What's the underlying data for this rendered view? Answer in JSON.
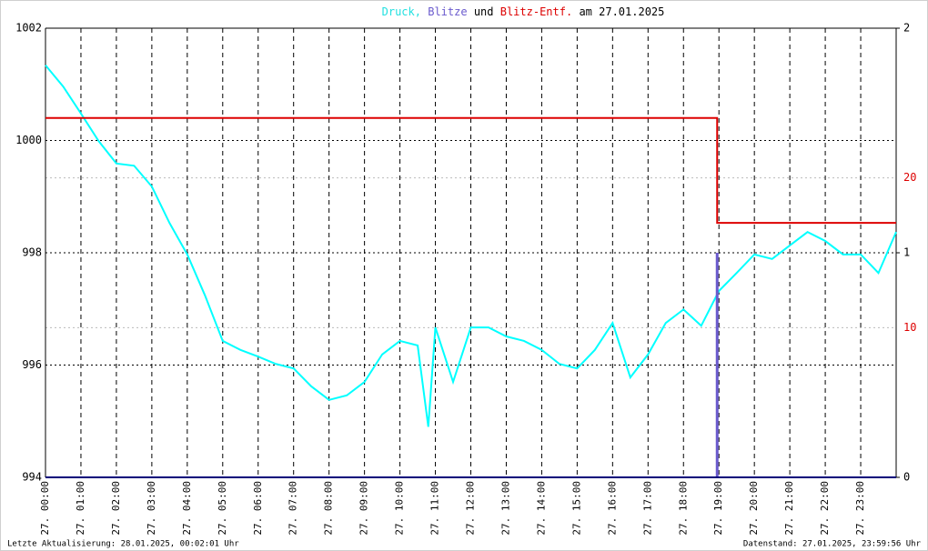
{
  "chart_data": {
    "type": "line",
    "title": [
      "Druck,",
      "Blitze",
      "und",
      "Blitz-Entf.",
      "am 27.01.2025"
    ],
    "title_colors": [
      "#22e0e0",
      "#6a5acd",
      "#000000",
      "#dd0000",
      "#000000"
    ],
    "xlim": [
      0,
      24
    ],
    "xticks": [
      {
        "value": 0,
        "label": "27. 00:00"
      },
      {
        "value": 1,
        "label": "27. 01:00"
      },
      {
        "value": 2,
        "label": "27. 02:00"
      },
      {
        "value": 3,
        "label": "27. 03:00"
      },
      {
        "value": 4,
        "label": "27. 04:00"
      },
      {
        "value": 5,
        "label": "27. 05:00"
      },
      {
        "value": 6,
        "label": "27. 06:00"
      },
      {
        "value": 7,
        "label": "27. 07:00"
      },
      {
        "value": 8,
        "label": "27. 08:00"
      },
      {
        "value": 9,
        "label": "27. 09:00"
      },
      {
        "value": 10,
        "label": "27. 10:00"
      },
      {
        "value": 11,
        "label": "27. 11:00"
      },
      {
        "value": 12,
        "label": "27. 12:00"
      },
      {
        "value": 13,
        "label": "27. 13:00"
      },
      {
        "value": 14,
        "label": "27. 14:00"
      },
      {
        "value": 15,
        "label": "27. 15:00"
      },
      {
        "value": 16,
        "label": "27. 16:00"
      },
      {
        "value": 17,
        "label": "27. 17:00"
      },
      {
        "value": 18,
        "label": "27. 18:00"
      },
      {
        "value": 19,
        "label": "27. 19:00"
      },
      {
        "value": 20,
        "label": "27. 20:00"
      },
      {
        "value": 21,
        "label": "27. 21:00"
      },
      {
        "value": 22,
        "label": "27. 22:00"
      },
      {
        "value": 23,
        "label": "27. 23:00"
      }
    ],
    "ylim": [
      994,
      1002
    ],
    "yticks": [
      994,
      996,
      998,
      1000,
      1002
    ],
    "y2lim": [
      0,
      2
    ],
    "y2ticks": [
      0,
      1,
      2
    ],
    "y3lim": [
      0,
      30
    ],
    "y3ticks": [
      10,
      20
    ],
    "y3color": "#dd0000",
    "grid": true,
    "series": [
      {
        "name": "Druck",
        "color": "#00ffff",
        "axis": "y",
        "kind": "line",
        "x": [
          0,
          0.5,
          1,
          1.5,
          2,
          2.5,
          3,
          3.5,
          4,
          4.5,
          5,
          5.5,
          6,
          6.5,
          7,
          7.5,
          8,
          8.5,
          9,
          9.5,
          10,
          10.5,
          10.8,
          11,
          11.5,
          12,
          12.5,
          13,
          13.5,
          14,
          14.5,
          15,
          15.5,
          16,
          16.5,
          17,
          17.5,
          18,
          18.5,
          19,
          19.5,
          20,
          20.5,
          21,
          21.5,
          22,
          22.5,
          23,
          23.5,
          24
        ],
        "values": [
          1001.34,
          1000.96,
          1000.48,
          999.99,
          999.59,
          999.55,
          999.18,
          998.53,
          997.97,
          997.24,
          996.43,
          996.27,
          996.15,
          996.02,
          995.94,
          995.62,
          995.38,
          995.46,
          995.7,
          996.19,
          996.43,
          996.35,
          994.9,
          996.67,
          995.7,
          996.67,
          996.67,
          996.51,
          996.43,
          996.27,
          996.02,
          995.94,
          996.27,
          996.75,
          995.78,
          996.19,
          996.75,
          996.99,
          996.7,
          997.32,
          997.64,
          997.97,
          997.89,
          998.13,
          998.37,
          998.21,
          997.97,
          997.97,
          997.64,
          998.37
        ]
      },
      {
        "name": "Blitze",
        "color": "#6a5acd",
        "axis": "y2",
        "kind": "bar",
        "x": [
          18.95
        ],
        "values": [
          1
        ]
      },
      {
        "name": "Blitz-Entf.",
        "color": "#dd0000",
        "axis": "y3",
        "kind": "line",
        "x": [
          0,
          18.95,
          18.95,
          24
        ],
        "values": [
          24,
          24,
          17,
          17
        ]
      }
    ],
    "footer_left": "Letzte Aktualisierung: 28.01.2025, 00:02:01 Uhr",
    "footer_right": "Datenstand: 27.01.2025, 23:59:56 Uhr"
  }
}
